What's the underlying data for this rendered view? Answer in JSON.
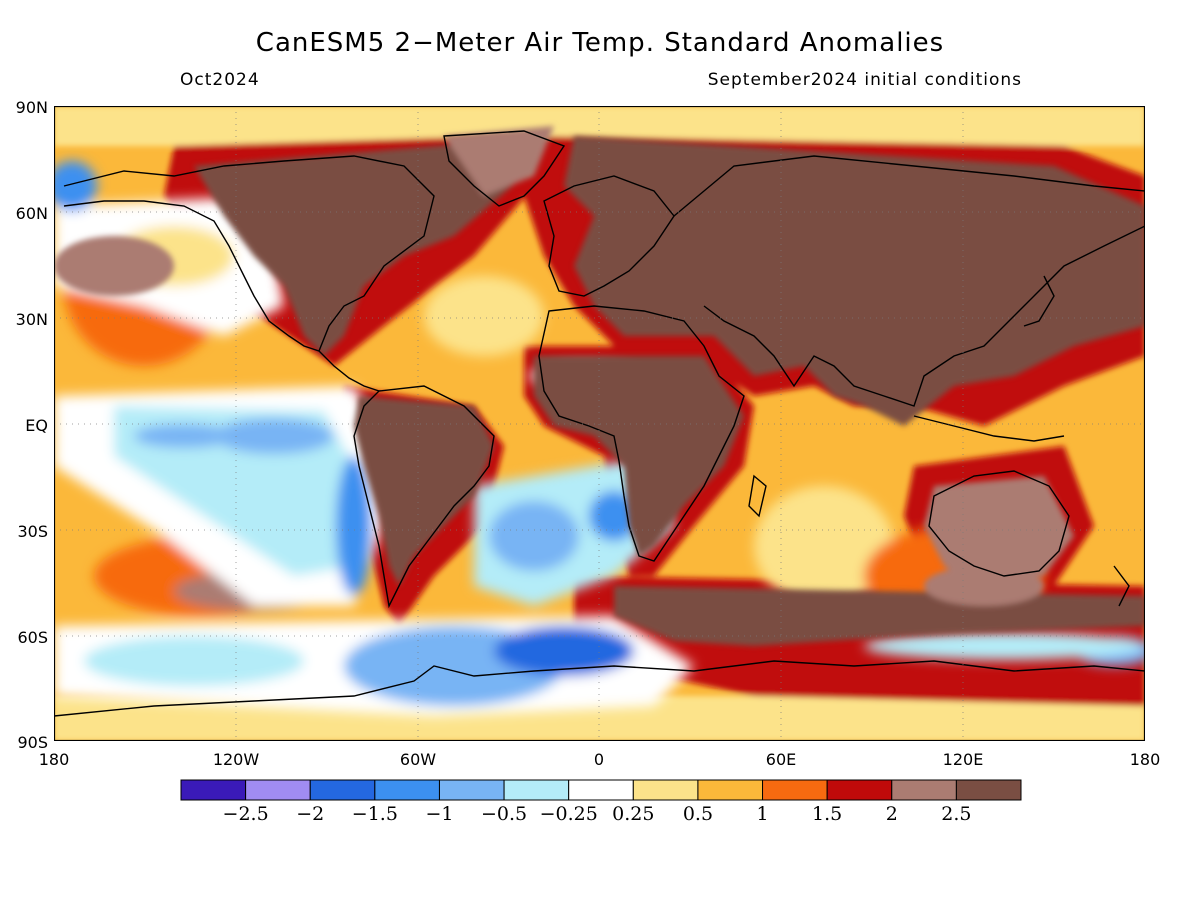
{
  "header": {
    "title": "CanESM5 2−Meter Air Temp. Standard Anomalies",
    "valid_month": "Oct2024",
    "init_conditions": "September2024 initial conditions"
  },
  "map": {
    "projection": "equirectangular",
    "lon_range": [
      -180,
      180
    ],
    "lat_range": [
      -90,
      90
    ],
    "lat_labels": [
      "90N",
      "60N",
      "30N",
      "EQ",
      "30S",
      "60S",
      "90S"
    ],
    "lon_labels": [
      "180",
      "120W",
      "60W",
      "0",
      "60E",
      "120E",
      "180"
    ],
    "grid": "dotted",
    "variable": "2-meter air temperature standardized anomaly",
    "land_dominant_category": "2.5",
    "ocean_cool_regions": [
      "tropical Pacific",
      "South Atlantic",
      "Southern Ocean near Antarctic Peninsula",
      "subtropical Atlantic near West Africa"
    ]
  },
  "colorbar": {
    "labels": [
      "−2.5",
      "−2",
      "−1.5",
      "−1",
      "−0.5",
      "−0.25",
      "0.25",
      "0.5",
      "1",
      "1.5",
      "2",
      "2.5"
    ],
    "colors": [
      "#3a1ab8",
      "#a08cf2",
      "#2468e0",
      "#3c90f0",
      "#78b4f4",
      "#b4ecf8",
      "#ffffff",
      "#fce38a",
      "#fbb83a",
      "#f76a10",
      "#c00a0a",
      "#ab7c72",
      "#7a4e43"
    ]
  }
}
